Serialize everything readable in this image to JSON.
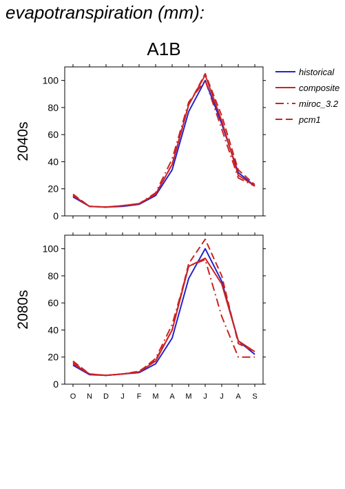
{
  "page": {
    "title": "evapotranspiration (mm):"
  },
  "chart_data": {
    "type": "line",
    "title": "A1B",
    "categories": [
      "O",
      "N",
      "D",
      "J",
      "F",
      "M",
      "A",
      "M",
      "J",
      "J",
      "A",
      "S"
    ],
    "ylim": [
      0,
      110
    ],
    "yticks": [
      0,
      20,
      40,
      60,
      80,
      100
    ],
    "legend": {
      "placement": "right",
      "entries": [
        {
          "name": "historical",
          "color": "#2222cc",
          "dash": "solid"
        },
        {
          "name": "composite",
          "color": "#cc2222",
          "dash": "solid"
        },
        {
          "name": "miroc_3.2",
          "color": "#cc2222",
          "dash": "dashdot"
        },
        {
          "name": "pcm1",
          "color": "#cc2222",
          "dash": "dashed"
        }
      ]
    },
    "panels": [
      {
        "label": "2040s",
        "series": [
          {
            "name": "historical",
            "values": [
              14,
              7,
              6.5,
              7,
              8.5,
              15,
              34,
              77,
              100,
              68,
              32,
              22
            ]
          },
          {
            "name": "composite",
            "values": [
              15,
              7,
              6.5,
              7.5,
              9,
              16,
              38,
              82,
              104,
              70,
              30,
              22
            ]
          },
          {
            "name": "miroc_3.2",
            "values": [
              15,
              7,
              6.5,
              7.5,
              9,
              17,
              42,
              84,
              100,
              64,
              28,
              22
            ]
          },
          {
            "name": "pcm1",
            "values": [
              16,
              7,
              6.5,
              7.5,
              9,
              16,
              38,
              82,
              105,
              74,
              34,
              23
            ]
          }
        ]
      },
      {
        "label": "2080s",
        "series": [
          {
            "name": "historical",
            "values": [
              14,
              7,
              6.5,
              7.5,
              8.5,
              15,
              34,
              78,
              100,
              76,
              32,
              22
            ]
          },
          {
            "name": "composite",
            "values": [
              15,
              7.5,
              6.5,
              7.5,
              9,
              17,
              40,
              87,
              93,
              74,
              32,
              24
            ]
          },
          {
            "name": "miroc_3.2",
            "values": [
              16,
              7.5,
              6.5,
              7.5,
              9,
              19,
              44,
              87,
              92,
              50,
              20,
              20
            ]
          },
          {
            "name": "pcm1",
            "values": [
              17,
              7.5,
              6.5,
              7.5,
              9.5,
              18,
              40,
              89,
              107,
              80,
              30,
              24
            ]
          }
        ]
      }
    ]
  }
}
